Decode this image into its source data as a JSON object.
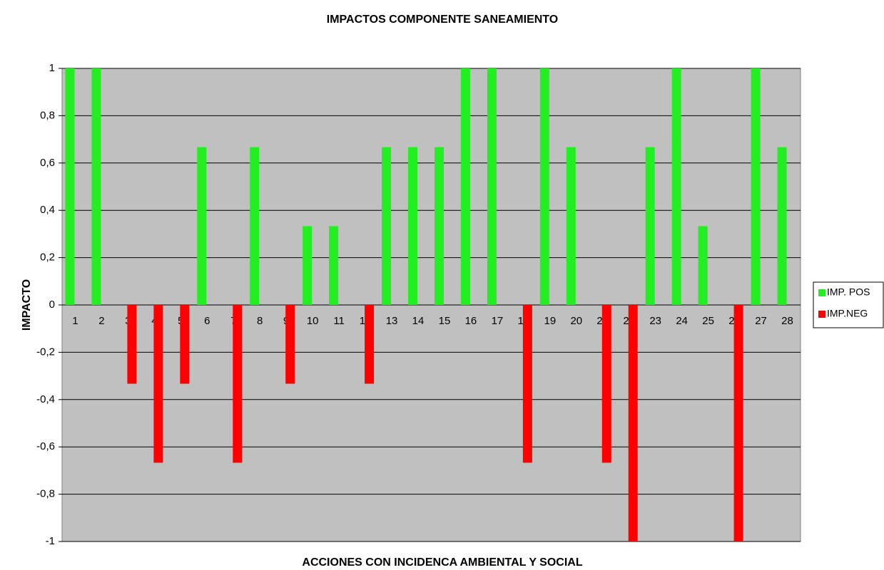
{
  "chart_data": {
    "type": "bar",
    "title": "IMPACTOS COMPONENTE SANEAMIENTO",
    "x_label": "ACCIONES CON INCIDENCA AMBIENTAL Y SOCIAL",
    "y_label": "IMPACTO",
    "categories": [
      "1",
      "2",
      "3",
      "4",
      "5",
      "6",
      "7",
      "8",
      "9",
      "10",
      "11",
      "12",
      "13",
      "14",
      "15",
      "16",
      "17",
      "18",
      "19",
      "20",
      "21",
      "22",
      "23",
      "24",
      "25",
      "26",
      "27",
      "28"
    ],
    "series": [
      {
        "name": "IMP. POS",
        "color": "#22ee22",
        "values": [
          1,
          1,
          0,
          0,
          0,
          0.667,
          0,
          0.667,
          0,
          0.333,
          0.333,
          0,
          0.667,
          0.667,
          0.667,
          1,
          1,
          0,
          1,
          0.667,
          0,
          0,
          0.667,
          1,
          0.333,
          0,
          1,
          0.667
        ]
      },
      {
        "name": "IMP.NEG",
        "color": "#ff0000",
        "values": [
          0,
          0,
          -0.333,
          -0.667,
          -0.333,
          0,
          -0.667,
          0,
          -0.333,
          0,
          0,
          -0.333,
          0,
          0,
          0,
          0,
          0,
          -0.667,
          0,
          0,
          -0.667,
          -1,
          0,
          0,
          0,
          -1,
          0,
          0
        ]
      }
    ],
    "ylim": [
      -1,
      1
    ],
    "yticks": [
      1,
      {
        "value": 0.8,
        "label": "0,8"
      },
      {
        "value": 0.6,
        "label": "0,6"
      },
      {
        "value": 0.4,
        "label": "0,4"
      },
      {
        "value": 0.2,
        "label": "0,2"
      },
      0,
      {
        "value": -0.2,
        "label": "-0,2"
      },
      {
        "value": -0.4,
        "label": "-0,4"
      },
      {
        "value": -0.6,
        "label": "-0,6"
      },
      {
        "value": -0.8,
        "label": "-0,8"
      },
      -1
    ],
    "grid": true,
    "legend": "right"
  }
}
